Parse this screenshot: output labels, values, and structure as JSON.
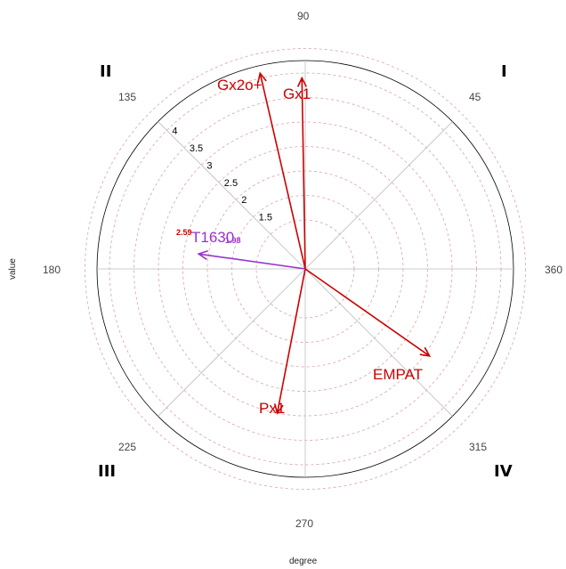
{
  "chart_data": {
    "type": "polar-vector",
    "xlabel": "degree",
    "ylabel": "value",
    "radial_ticks": [
      "1.5",
      "2",
      "2.5",
      "3",
      "3.5",
      "4"
    ],
    "angle_labels": [
      "45",
      "90",
      "135",
      "180",
      "225",
      "270",
      "315",
      "360"
    ],
    "quadrants": [
      "I",
      "II",
      "III",
      "IV"
    ],
    "vectors": [
      {
        "name": "Gx2o+",
        "angle": 103,
        "value": 4.1,
        "color": "#cc0000"
      },
      {
        "name": "Gx1",
        "angle": 91,
        "value": 3.9,
        "color": "#cc0000"
      },
      {
        "name": "EMPAT",
        "angle": 325,
        "value": 3.1,
        "color": "#cc0000"
      },
      {
        "name": "Px1",
        "angle": 259,
        "value": 3.0,
        "color": "#cc0000"
      },
      {
        "name": "T1630",
        "angle": 172,
        "value": 2.2,
        "color": "#9933cc"
      }
    ],
    "annotations": [
      {
        "text": "2.59",
        "color": "#cc0000"
      },
      {
        "text": "1.98",
        "color": "#9933cc"
      }
    ]
  }
}
